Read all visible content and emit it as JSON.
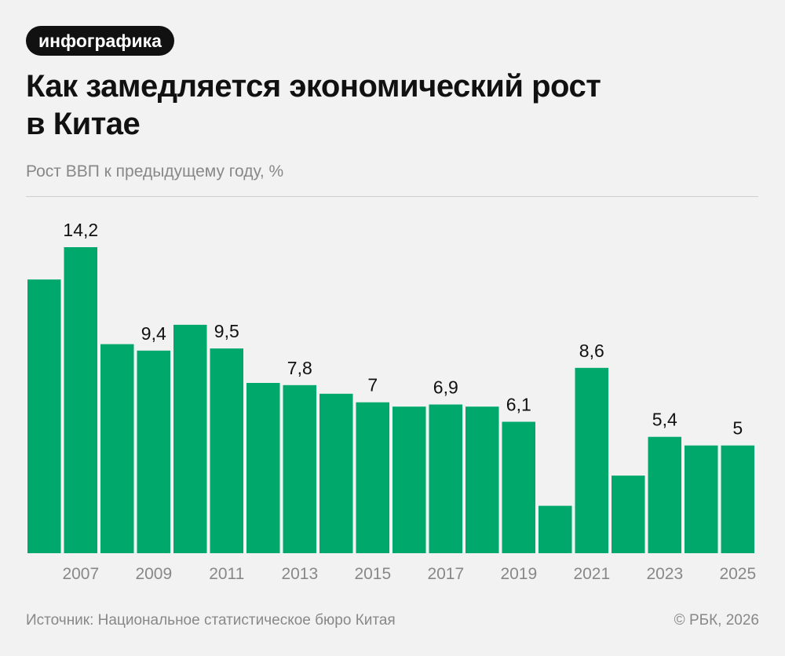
{
  "tag": "инфографика",
  "title": "Как замедляется экономический рост\nв Китае",
  "subtitle": "Рост ВВП к предыдущему году, %",
  "source": "Источник: Национальное статистическое бюро Китая",
  "copyright": "© РБК, 2026",
  "colors": {
    "bar": "#00a86b",
    "background": "#f2f2f2",
    "tick": "#888888"
  },
  "chart_data": {
    "type": "bar",
    "categories": [
      "2006",
      "2007",
      "2008",
      "2009",
      "2010",
      "2011",
      "2012",
      "2013",
      "2014",
      "2015",
      "2016",
      "2017",
      "2018",
      "2019",
      "2020",
      "2021",
      "2022",
      "2023",
      "2024",
      "2025"
    ],
    "values": [
      12.7,
      14.2,
      9.7,
      9.4,
      10.6,
      9.5,
      7.9,
      7.8,
      7.4,
      7,
      6.8,
      6.9,
      6.8,
      6.1,
      2.2,
      8.6,
      3.6,
      5.4,
      5,
      5
    ],
    "data_labels": [
      "",
      "14,2",
      "",
      "9,4",
      "",
      "9,5",
      "",
      "7,8",
      "",
      "7",
      "",
      "6,9",
      "",
      "6,1",
      "",
      "8,6",
      "",
      "5,4",
      "",
      "5"
    ],
    "tick_labels": [
      "",
      "2007",
      "",
      "2009",
      "",
      "2011",
      "",
      "2013",
      "",
      "2015",
      "",
      "2017",
      "",
      "2019",
      "",
      "2021",
      "",
      "2023",
      "",
      "2025"
    ],
    "ylim": [
      0,
      14.2
    ],
    "grid": false,
    "legend": "none"
  }
}
